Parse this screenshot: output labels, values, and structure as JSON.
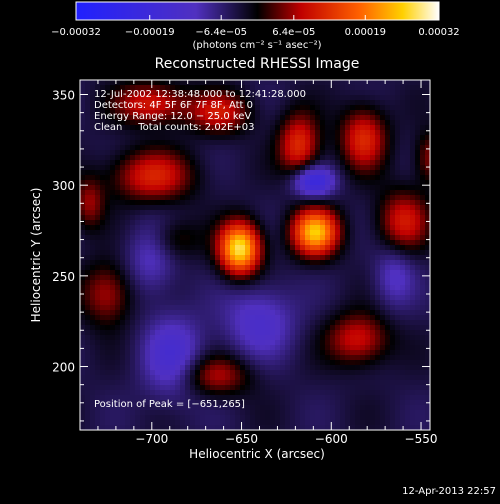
{
  "chart_data": {
    "type": "heatmap",
    "title": "Reconstructed RHESSI Image",
    "xlabel": "Heliocentric X (arcsec)",
    "ylabel": "Heliocentric Y (arcsec)",
    "xlim": [
      -740,
      -545
    ],
    "ylim": [
      165,
      358
    ],
    "x_ticks": [
      -700,
      -650,
      -600,
      -550
    ],
    "x_tick_labels": [
      "−700",
      "−650",
      "−600",
      "−550"
    ],
    "y_ticks": [
      200,
      250,
      300,
      350
    ],
    "y_tick_labels": [
      "200",
      "250",
      "300",
      "350"
    ],
    "colorbar": {
      "range": [
        -0.00032,
        0.00032
      ],
      "ticks": [
        -0.00032,
        -0.00019,
        -6.4e-05,
        6.4e-05,
        0.00019,
        0.00032
      ],
      "tick_labels": [
        "−0.00032",
        "−0.00019",
        "−6.4e−05",
        "6.4e−05",
        "0.00019",
        "0.00032"
      ],
      "units": "(photons cm⁻² s⁻¹ asec⁻²)",
      "colormap": "rhessi"
    },
    "annotations": [
      "12-Jul-2002 12:38:48.000 to 12:41:28.000",
      "Detectors: 4F 5F 6F 7F 8F, Att 0",
      "Energy Range: 12.0 − 25.0 keV",
      "Clean     Total counts: 2.02E+03"
    ],
    "peak_label": "Position of Peak = [−651,265]",
    "peak": [
      -651,
      265
    ],
    "sources": [
      {
        "x": -651,
        "y": 265,
        "amp": 1.0,
        "sx": 8,
        "sy": 10
      },
      {
        "x": -609,
        "y": 274,
        "amp": 0.88,
        "sx": 9,
        "sy": 9
      },
      {
        "x": -700,
        "y": 305,
        "amp": 0.45,
        "sx": 16,
        "sy": 10
      },
      {
        "x": -618,
        "y": 322,
        "amp": 0.5,
        "sx": 8,
        "sy": 12
      },
      {
        "x": -582,
        "y": 326,
        "amp": 0.48,
        "sx": 9,
        "sy": 12
      },
      {
        "x": -700,
        "y": 345,
        "amp": 0.45,
        "sx": 14,
        "sy": 8
      },
      {
        "x": -662,
        "y": 340,
        "amp": 0.4,
        "sx": 12,
        "sy": 8
      },
      {
        "x": -560,
        "y": 280,
        "amp": 0.42,
        "sx": 10,
        "sy": 12
      },
      {
        "x": -585,
        "y": 215,
        "amp": 0.42,
        "sx": 12,
        "sy": 10
      },
      {
        "x": -665,
        "y": 195,
        "amp": 0.35,
        "sx": 14,
        "sy": 8
      },
      {
        "x": -725,
        "y": 240,
        "amp": 0.35,
        "sx": 10,
        "sy": 12
      },
      {
        "x": -735,
        "y": 290,
        "amp": 0.3,
        "sx": 6,
        "sy": 10
      },
      {
        "x": -688,
        "y": 270,
        "amp": 0.22,
        "sx": 10,
        "sy": 8
      },
      {
        "x": -545,
        "y": 315,
        "amp": 0.3,
        "sx": 6,
        "sy": 10
      }
    ],
    "holes": [
      {
        "x": -610,
        "y": 302,
        "amp": 0.55,
        "sx": 8,
        "sy": 6
      },
      {
        "x": -688,
        "y": 205,
        "amp": 0.35,
        "sx": 12,
        "sy": 16
      },
      {
        "x": -640,
        "y": 225,
        "amp": 0.3,
        "sx": 14,
        "sy": 14
      },
      {
        "x": -700,
        "y": 260,
        "amp": 0.25,
        "sx": 10,
        "sy": 14
      },
      {
        "x": -565,
        "y": 250,
        "amp": 0.25,
        "sx": 8,
        "sy": 12
      }
    ]
  },
  "footer": {
    "timestamp": "12-Apr-2013 22:57"
  }
}
